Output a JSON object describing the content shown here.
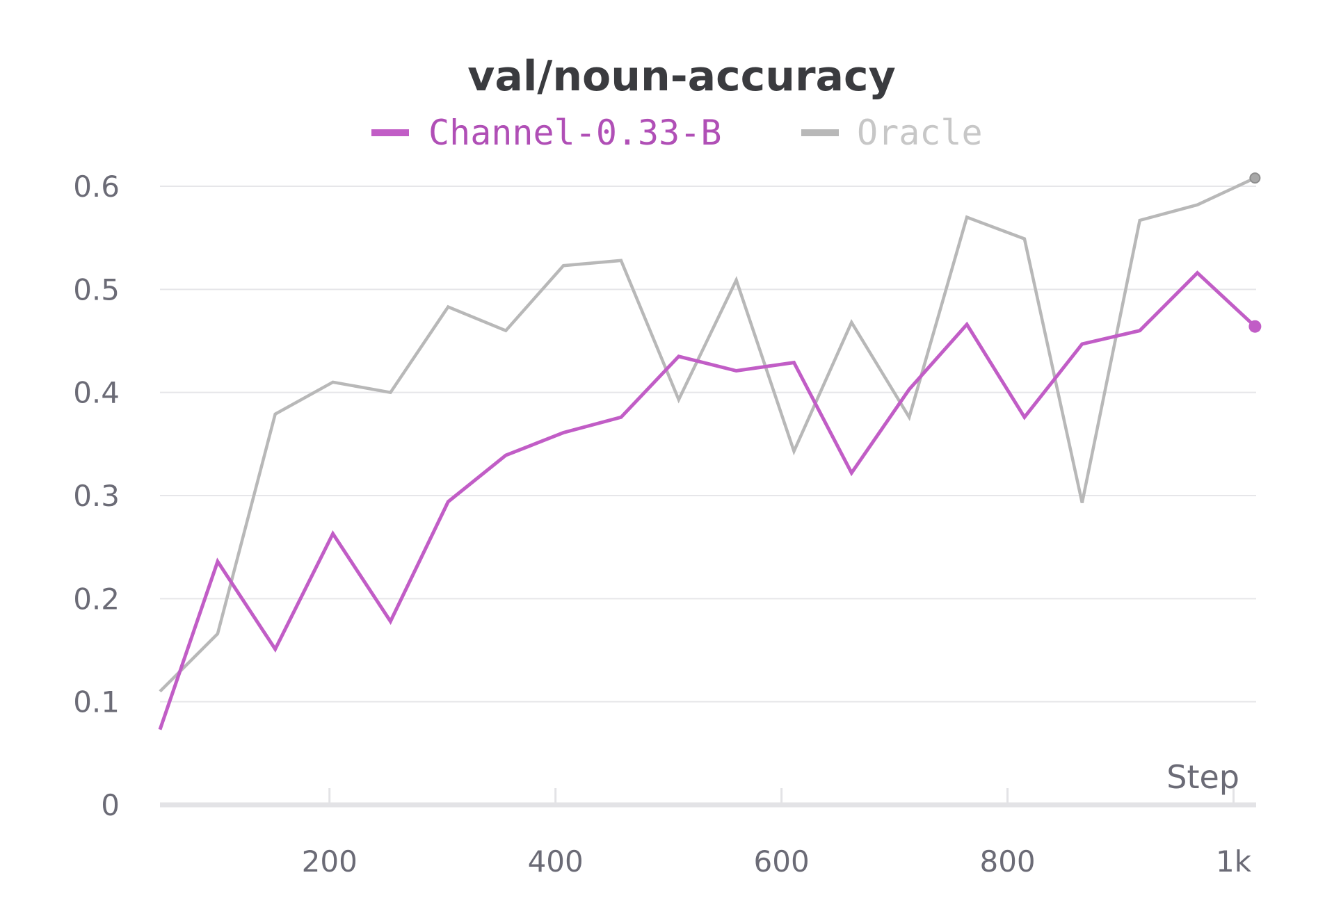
{
  "chart_data": {
    "type": "line",
    "title": "val/noun-accuracy",
    "xlabel": "Step",
    "ylabel": "",
    "xlim": [
      50,
      1020
    ],
    "ylim": [
      0,
      0.6
    ],
    "x_ticks": [
      {
        "value": 200,
        "label": "200"
      },
      {
        "value": 400,
        "label": "400"
      },
      {
        "value": 600,
        "label": "600"
      },
      {
        "value": 800,
        "label": "800"
      },
      {
        "value": 1000,
        "label": "1k"
      }
    ],
    "y_ticks": [
      {
        "value": 0,
        "label": "0"
      },
      {
        "value": 0.1,
        "label": "0.1"
      },
      {
        "value": 0.2,
        "label": "0.2"
      },
      {
        "value": 0.3,
        "label": "0.3"
      },
      {
        "value": 0.4,
        "label": "0.4"
      },
      {
        "value": 0.5,
        "label": "0.5"
      },
      {
        "value": 0.6,
        "label": "0.6"
      }
    ],
    "grid": true,
    "legend_position": "top",
    "x": [
      50,
      101,
      152,
      203,
      254,
      305,
      356,
      407,
      458,
      509,
      560,
      611,
      662,
      713,
      764,
      815,
      866,
      917,
      968,
      1019
    ],
    "series": [
      {
        "name": "Channel-0.33-B",
        "color": "#c15dc6",
        "values": [
          0.073,
          0.236,
          0.151,
          0.263,
          0.178,
          0.294,
          0.339,
          0.361,
          0.376,
          0.435,
          0.421,
          0.429,
          0.322,
          0.403,
          0.466,
          0.376,
          0.447,
          0.46,
          0.516,
          0.464
        ]
      },
      {
        "name": "Oracle",
        "color": "#b8b8b8",
        "values": [
          0.11,
          0.166,
          0.379,
          0.41,
          0.4,
          0.483,
          0.46,
          0.523,
          0.528,
          0.393,
          0.509,
          0.343,
          0.468,
          0.376,
          0.57,
          0.549,
          0.293,
          0.567,
          0.582,
          0.608
        ]
      }
    ]
  }
}
